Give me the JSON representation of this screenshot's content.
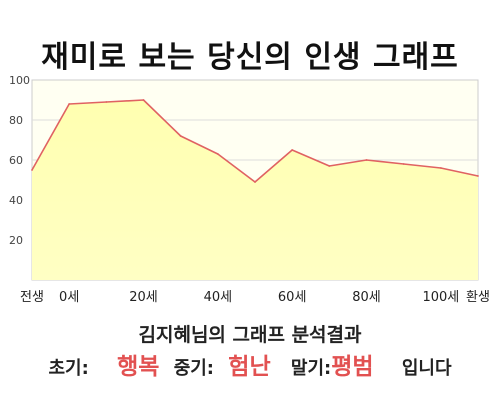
{
  "title": "재미로 보는 당신의 인생 그래프",
  "chart_data": {
    "type": "area",
    "x": [
      -10,
      0,
      10,
      20,
      30,
      40,
      50,
      60,
      70,
      80,
      90,
      100,
      110
    ],
    "y": [
      55,
      88,
      89,
      90,
      72,
      63,
      49,
      65,
      57,
      60,
      58,
      56,
      52
    ],
    "xlim": [
      -10,
      110
    ],
    "ylim": [
      0,
      100
    ],
    "yticks": [
      0,
      20,
      40,
      60,
      80,
      100
    ],
    "ytick_labels": [
      "",
      "20",
      "40",
      "60",
      "80",
      "100"
    ],
    "xticks": [
      -10,
      0,
      20,
      40,
      60,
      80,
      100,
      110
    ],
    "xtick_labels": [
      "전생",
      "0세",
      "20세",
      "40세",
      "60세",
      "80세",
      "100세",
      "환생"
    ],
    "grid": true,
    "colors": {
      "line": "#e06262",
      "fill": "#ffffc4",
      "fill_top": "#ffffb0",
      "grid": "#dcdcdc"
    }
  },
  "result": {
    "heading": "김지혜님의 그래프 분석결과",
    "early_label": "초기:",
    "early_value": "행복",
    "mid_label": "중기:",
    "mid_value": "험난",
    "late_label": "말기:",
    "late_value": "평범",
    "suffix": "입니다"
  }
}
